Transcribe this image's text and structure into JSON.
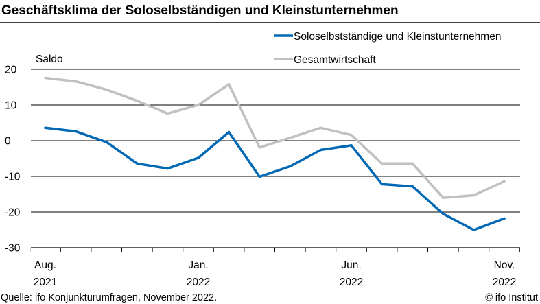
{
  "title": "Geschäftsklima der Soloselbständigen und Kleinstunternehmen",
  "source": "Quelle: ifo Konjunkturumfragen, November 2022.",
  "copyright": "© ifo Institut",
  "colors": {
    "solo": "#0068b4",
    "gesamt": "#c0c0c0",
    "grid": "#000000"
  },
  "chart_data": {
    "type": "line",
    "ylabel": "Saldo",
    "ylim": [
      -30,
      20
    ],
    "yticks": [
      20,
      10,
      0,
      -10,
      -20,
      -30
    ],
    "grid": true,
    "legend_position": "top-right",
    "x": [
      "2021-08",
      "2021-09",
      "2021-10",
      "2021-11",
      "2021-12",
      "2022-01",
      "2022-02",
      "2022-03",
      "2022-04",
      "2022-05",
      "2022-06",
      "2022-07",
      "2022-08",
      "2022-09",
      "2022-10",
      "2022-11"
    ],
    "xtick_labels": [
      {
        "x": "2021-08",
        "line1": "Aug.",
        "line2": "2021"
      },
      {
        "x": "2022-01",
        "line1": "Jan.",
        "line2": "2022"
      },
      {
        "x": "2022-06",
        "line1": "Jun.",
        "line2": "2022"
      },
      {
        "x": "2022-11",
        "line1": "Nov.",
        "line2": "2022"
      }
    ],
    "series": [
      {
        "name": "Soloselbstständige und Kleinstunternehmen",
        "color_key": "solo",
        "values": [
          3.6,
          2.6,
          -0.4,
          -6.4,
          -7.8,
          -4.8,
          2.4,
          -10.1,
          -7.2,
          -2.6,
          -1.3,
          -12.2,
          -12.8,
          -20.5,
          -25.0,
          -21.8
        ]
      },
      {
        "name": "Gesamtwirtschaft",
        "color_key": "gesamt",
        "values": [
          17.6,
          16.6,
          14.3,
          11.2,
          7.6,
          10.0,
          15.8,
          -1.9,
          0.8,
          3.6,
          1.6,
          -6.4,
          -6.4,
          -16.0,
          -15.3,
          -11.4
        ]
      }
    ]
  }
}
